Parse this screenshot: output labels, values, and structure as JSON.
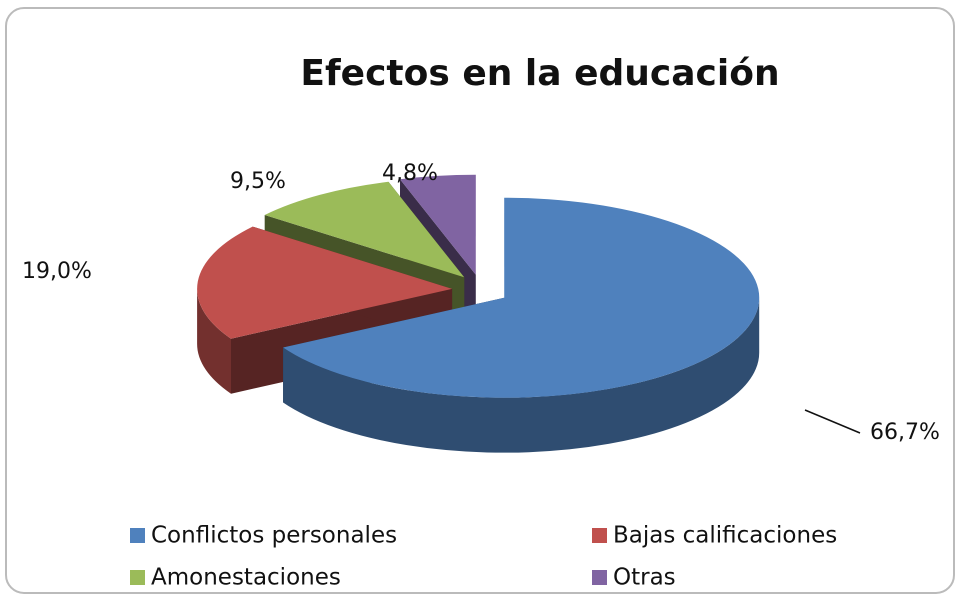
{
  "chart_data": {
    "type": "pie",
    "title": "Efectos en la educación",
    "categories": [
      "Conflictos personales",
      "Bajas calificaciones",
      "Amonestaciones",
      "Otras"
    ],
    "values": [
      66.7,
      19.0,
      9.5,
      4.8
    ],
    "value_labels": [
      "66,7%",
      "19,0%",
      "9,5%",
      "4,8%"
    ],
    "colors": [
      "#4f81bd",
      "#c0504d",
      "#9bbb59",
      "#8064a2"
    ],
    "legend": "bottom"
  }
}
